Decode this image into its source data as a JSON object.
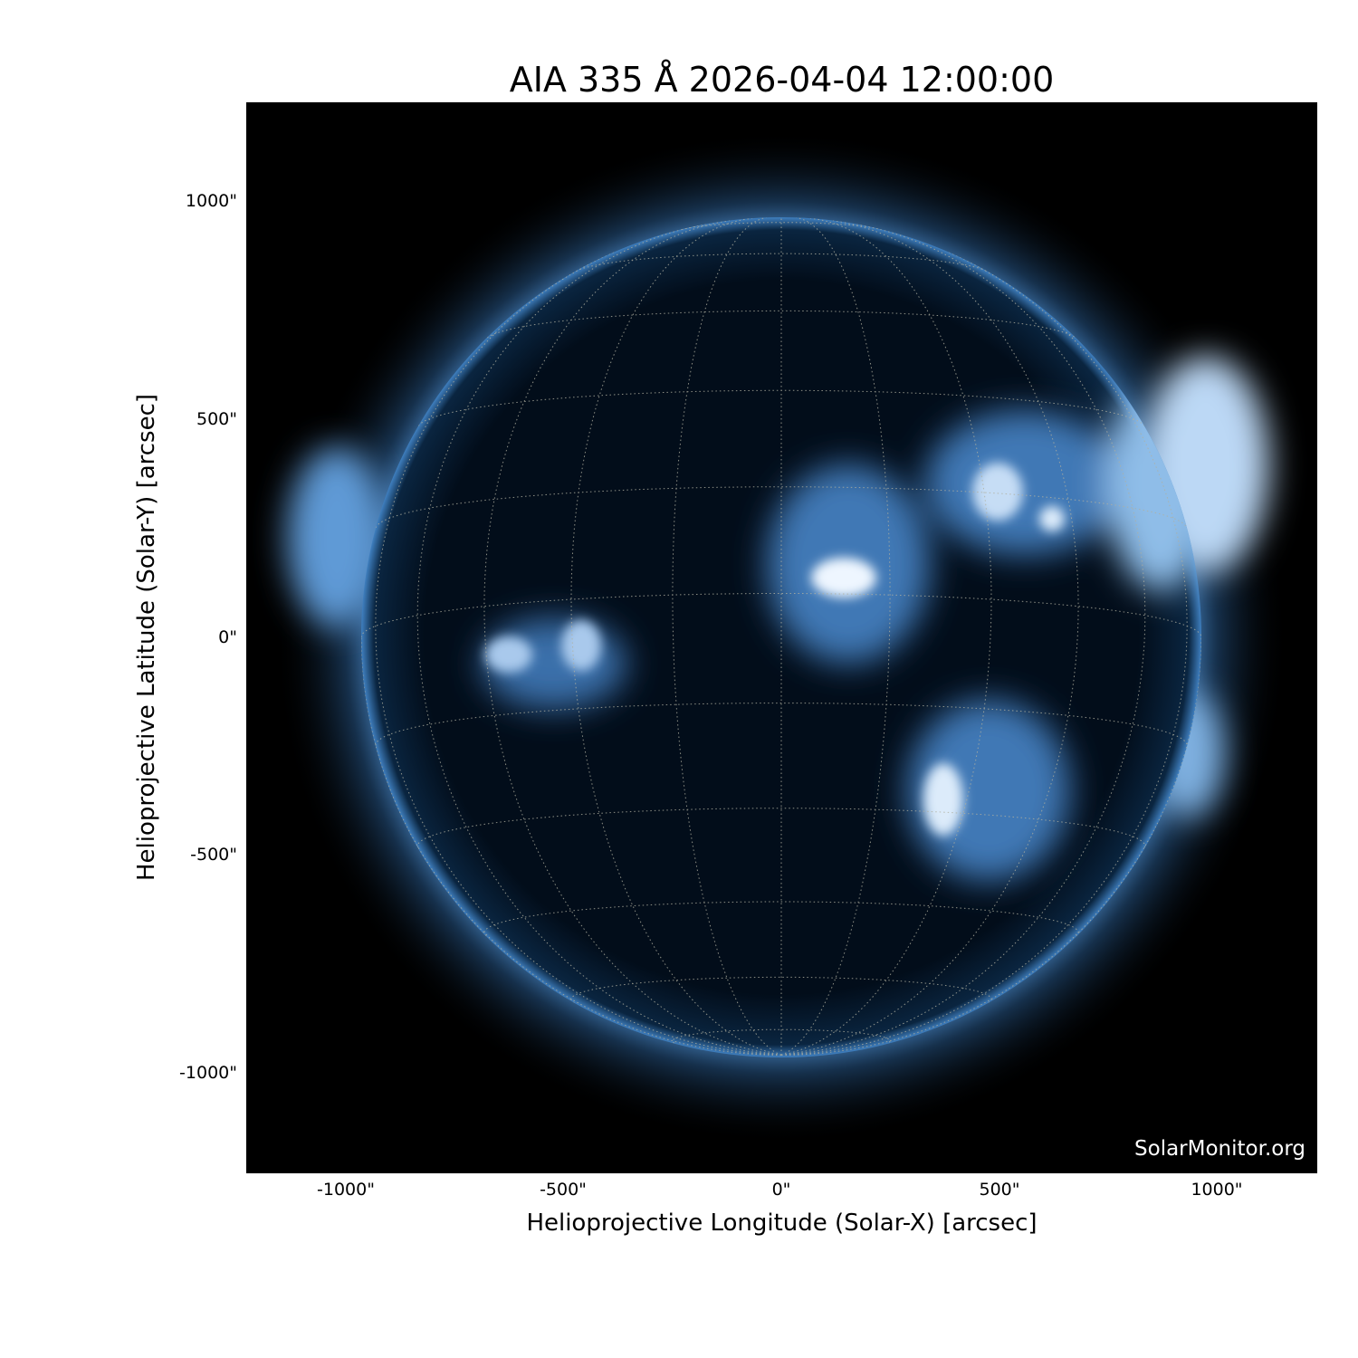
{
  "title": "AIA 335 Å 2026-04-04 12:00:00",
  "xlabel": "Helioprojective Longitude (Solar-X) [arcsec]",
  "ylabel": "Helioprojective Latitude (Solar-Y) [arcsec]",
  "xticks": [
    "-1000\"",
    "-500\"",
    "0\"",
    "500\"",
    "1000\""
  ],
  "yticks": [
    "1000\"",
    "500\"",
    "0\"",
    "-500\"",
    "-1000\""
  ],
  "watermark": "SolarMonitor.org",
  "colors": {
    "background": "#000000",
    "disk": "#02101f",
    "emission": "#4f8fd0",
    "bright": "#e8f2ff",
    "grid": "#b0b0a0"
  }
}
